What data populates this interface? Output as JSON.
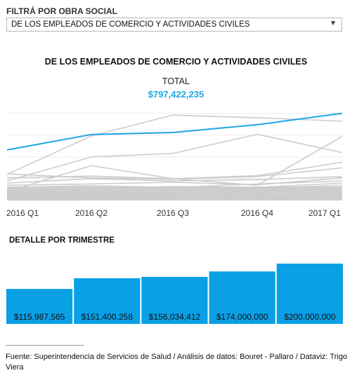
{
  "filter": {
    "label": "FILTRÁ POR OBRA SOCIAL",
    "selected": "DE LOS EMPLEADOS DE COMERCIO Y ACTIVIDADES CIVILES",
    "arrow_icon": "triangle-down-icon"
  },
  "colors": {
    "accent": "#1ca6e4",
    "other_lines": "#cccccc",
    "bar": "#0aa0e6",
    "grid": "#eeeeee"
  },
  "chart_data": [
    {
      "type": "line",
      "title": "DE LOS EMPLEADOS DE COMERCIO Y ACTIVIDADES CIVILES",
      "total_label": "TOTAL",
      "total_value": "$797,422,235",
      "x": [
        "2016 Q1",
        "2016 Q2",
        "2016 Q3",
        "2016 Q4",
        "2017 Q1"
      ],
      "x_tick_labels": [
        "2016 Q1",
        "2016 Q2",
        "2016 Q3",
        "2016 Q4",
        "2017 Q1"
      ],
      "ylim": [
        0,
        222000000
      ],
      "grid": true,
      "highlight_series": {
        "values": [
          115987565,
          151400258,
          156034412,
          174000000,
          200000000
        ]
      },
      "other_series": [
        [
          60000000,
          148000000,
          196000000,
          190000000,
          182000000
        ],
        [
          45000000,
          100000000,
          108000000,
          152000000,
          110000000
        ],
        [
          20000000,
          80000000,
          50000000,
          35000000,
          147000000
        ],
        [
          52000000,
          56000000,
          50000000,
          57000000,
          88000000
        ],
        [
          61000000,
          52000000,
          49000000,
          55000000,
          75000000
        ],
        [
          40000000,
          50000000,
          45000000,
          48000000,
          55000000
        ],
        [
          35000000,
          38000000,
          42000000,
          36000000,
          52000000
        ],
        [
          30000000,
          34000000,
          30000000,
          38000000,
          45000000
        ],
        [
          25000000,
          28000000,
          32000000,
          30000000,
          40000000
        ],
        [
          22000000,
          24000000,
          26000000,
          28000000,
          35000000
        ],
        [
          18000000,
          20000000,
          22000000,
          24000000,
          30000000
        ],
        [
          15000000,
          16000000,
          18000000,
          20000000,
          26000000
        ],
        [
          12000000,
          13000000,
          15000000,
          16000000,
          20000000
        ],
        [
          9000000,
          10000000,
          12000000,
          13000000,
          15000000
        ],
        [
          6000000,
          7000000,
          8000000,
          9000000,
          11000000
        ],
        [
          4000000,
          4500000,
          5000000,
          5500000,
          7000000
        ],
        [
          2000000,
          2500000,
          3000000,
          3000000,
          4000000
        ],
        [
          1000000,
          1200000,
          1500000,
          1500000,
          2000000
        ]
      ]
    },
    {
      "type": "bar",
      "title": "DETALLE POR TRIMESTRE",
      "categories": [
        "2016 Q1",
        "2016 Q2",
        "2016 Q3",
        "2016 Q4",
        "2017 Q1"
      ],
      "values": [
        115987565,
        151400258,
        156034412,
        174000000,
        200000000
      ],
      "value_labels": [
        "$115,987,565",
        "$151,400,258",
        "$156,034,412",
        "$174,000,000",
        "$200,000,000"
      ],
      "ylim": [
        0,
        200000000
      ]
    }
  ],
  "source": "Fuente: Superintendencia de Servicios de Salud / Análisis de datos: Bouret - Pallaro / Dataviz: Trigo Viera"
}
